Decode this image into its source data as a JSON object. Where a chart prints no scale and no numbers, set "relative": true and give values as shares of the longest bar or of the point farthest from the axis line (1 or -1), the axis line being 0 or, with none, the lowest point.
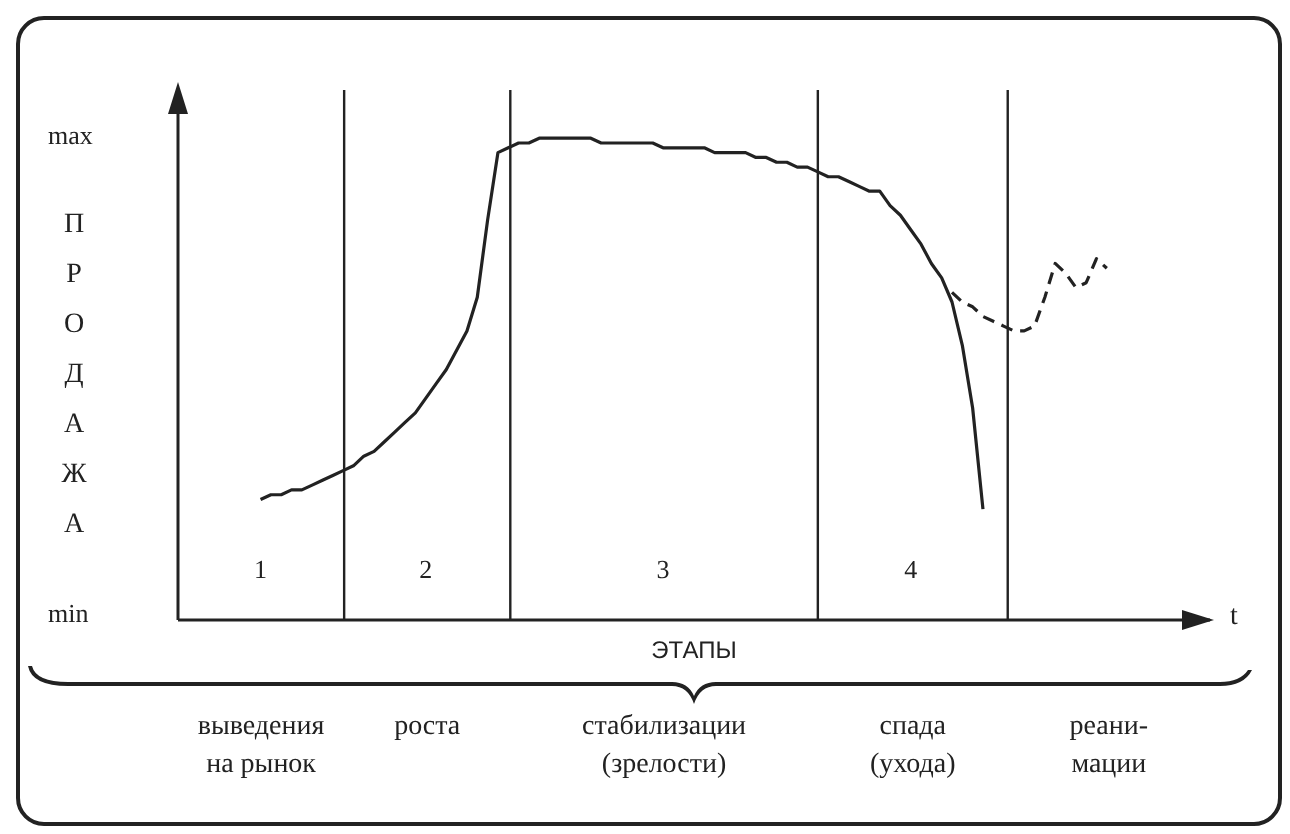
{
  "chart_data": {
    "type": "line",
    "relative": true,
    "ylabel": "ПРОДАЖА",
    "xlabel": "ЭТАПЫ",
    "marker": "none",
    "categories": [
      null,
      null,
      null,
      null,
      null,
      null,
      null,
      null,
      "1",
      null,
      null,
      null,
      null,
      null,
      null,
      null,
      null,
      null,
      null,
      null,
      null,
      null,
      null,
      null,
      "2",
      null,
      null,
      null,
      null,
      null,
      null,
      null,
      null,
      null,
      null,
      null,
      null,
      null,
      null,
      null,
      null,
      null,
      null,
      null,
      null,
      null,
      null,
      "3",
      null,
      null,
      null,
      null,
      null,
      null,
      null,
      null,
      null,
      null,
      null,
      null,
      null,
      null,
      null,
      null,
      null,
      null,
      null,
      null,
      null,
      null,
      null,
      "4",
      null,
      null,
      null,
      null,
      null,
      null,
      null,
      null,
      null,
      null,
      null,
      null,
      null,
      null,
      null,
      null,
      null,
      null,
      null,
      null,
      null,
      null,
      null,
      null,
      null,
      null,
      null,
      null,
      null
    ],
    "series": [
      {
        "color": "#222222",
        "line_style": "solid",
        "values": [
          null,
          null,
          null,
          null,
          null,
          null,
          null,
          null,
          0.25,
          0.26,
          0.26,
          0.27,
          0.27,
          0.28,
          0.29,
          0.3,
          0.31,
          0.32,
          0.34,
          0.35,
          0.37,
          0.39,
          0.41,
          0.43,
          0.46,
          0.49,
          0.52,
          0.56,
          0.6,
          0.67,
          0.83,
          0.97,
          0.98,
          0.99,
          0.99,
          1.0,
          1.0,
          1.0,
          1.0,
          1.0,
          1.0,
          0.99,
          0.99,
          0.99,
          0.99,
          0.99,
          0.99,
          0.98,
          0.98,
          0.98,
          0.98,
          0.98,
          0.97,
          0.97,
          0.97,
          0.97,
          0.96,
          0.96,
          0.95,
          0.95,
          0.94,
          0.94,
          0.93,
          0.92,
          0.92,
          0.91,
          0.9,
          0.89,
          0.89,
          0.86,
          0.84,
          0.81,
          0.78,
          0.74,
          0.71,
          0.66,
          0.57,
          0.44,
          0.23,
          null,
          null,
          null,
          null,
          null,
          null,
          null,
          null,
          null,
          null,
          null,
          null,
          null,
          null,
          null,
          null,
          null,
          null,
          null,
          null,
          null,
          null
        ]
      },
      {
        "color": "#222222",
        "line_style": "dashed",
        "values": [
          null,
          null,
          null,
          null,
          null,
          null,
          null,
          null,
          null,
          null,
          null,
          null,
          null,
          null,
          null,
          null,
          null,
          null,
          null,
          null,
          null,
          null,
          null,
          null,
          null,
          null,
          null,
          null,
          null,
          null,
          null,
          null,
          null,
          null,
          null,
          null,
          null,
          null,
          null,
          null,
          null,
          null,
          null,
          null,
          null,
          null,
          null,
          null,
          null,
          null,
          null,
          null,
          null,
          null,
          null,
          null,
          null,
          null,
          null,
          null,
          null,
          null,
          null,
          null,
          null,
          null,
          null,
          null,
          null,
          null,
          null,
          null,
          null,
          null,
          null,
          0.68,
          0.66,
          0.65,
          0.63,
          0.62,
          0.61,
          0.6,
          0.6,
          0.61,
          0.67,
          0.74,
          0.72,
          0.69,
          0.7,
          0.75,
          0.73,
          null,
          null,
          null,
          null,
          null,
          null,
          null,
          null,
          null,
          null
        ]
      }
    ],
    "annotations": [
      "t",
      "max",
      "min",
      "выведения\nна рынок",
      "роста",
      "стабилизации\n(зрелости)",
      "спада\n(ухода)",
      "реани-\nмации"
    ]
  }
}
